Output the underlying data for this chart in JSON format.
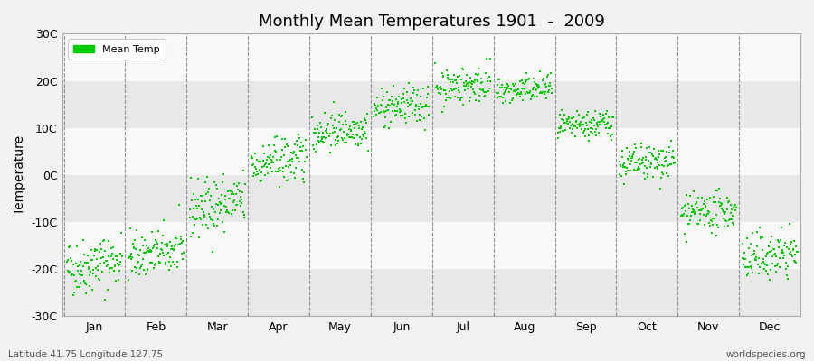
{
  "title": "Monthly Mean Temperatures 1901  -  2009",
  "ylabel": "Temperature",
  "ylim": [
    -30,
    30
  ],
  "ytick_labels": [
    "30C",
    "20C",
    "10C",
    "0C",
    "-10C",
    "-20C",
    "-30C"
  ],
  "ytick_vals": [
    30,
    20,
    10,
    0,
    -10,
    -20,
    -30
  ],
  "months": [
    "Jan",
    "Feb",
    "Mar",
    "Apr",
    "May",
    "Jun",
    "Jul",
    "Aug",
    "Sep",
    "Oct",
    "Nov",
    "Dec"
  ],
  "dot_color": "#00CC00",
  "legend_label": "Mean Temp",
  "bottom_left": "Latitude 41.75 Longitude 127.75",
  "bottom_right": "worldspecies.org",
  "bg_color": "#f2f2f2",
  "plot_bg_light": "#f8f8f8",
  "plot_bg_dark": "#e8e8e8",
  "monthly_means": [
    -20.0,
    -17.5,
    -7.5,
    2.0,
    9.0,
    14.0,
    18.5,
    17.5,
    10.0,
    2.0,
    -8.5,
    -18.0
  ],
  "monthly_spreads": [
    3.0,
    2.5,
    3.0,
    2.5,
    2.0,
    2.0,
    2.0,
    1.5,
    1.5,
    2.0,
    2.0,
    2.5
  ],
  "monthly_trends": [
    0.02,
    0.015,
    0.02,
    0.015,
    0.01,
    0.01,
    0.01,
    0.01,
    0.01,
    0.01,
    0.01,
    0.015
  ],
  "n_years": 109,
  "start_year": 1901
}
